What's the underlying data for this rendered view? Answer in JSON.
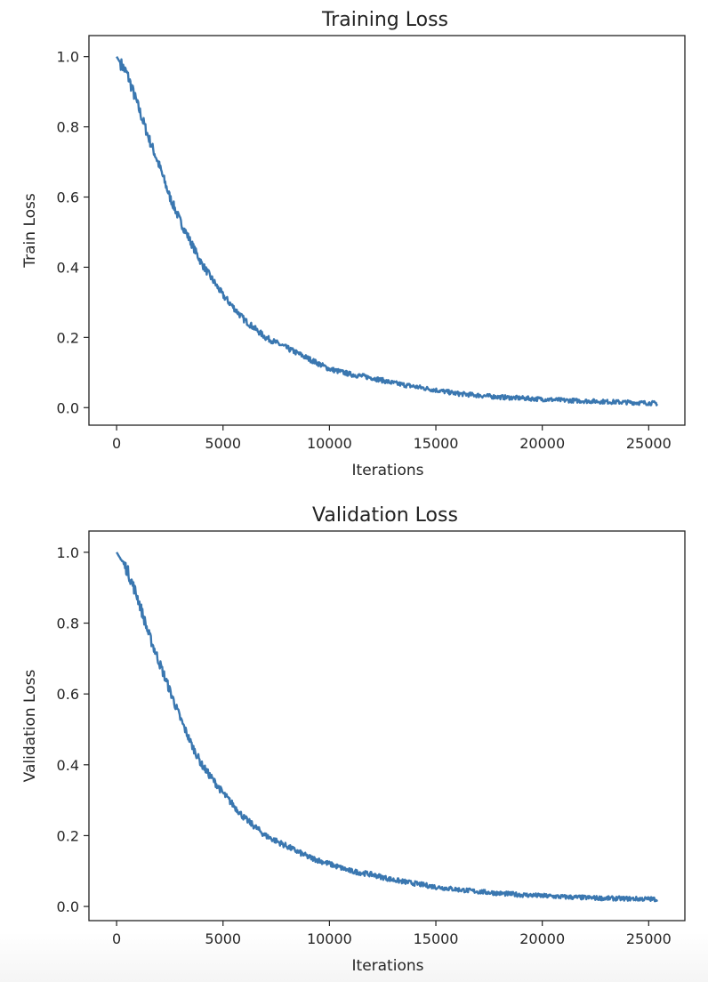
{
  "colors": {
    "line": "#3a77b0",
    "axes": "#222222",
    "background": "#ffffff"
  },
  "chart_data": [
    {
      "type": "line",
      "title": "Training Loss",
      "xlabel": "Iterations",
      "ylabel": "Train Loss",
      "xlim": [
        -1300,
        26700
      ],
      "ylim": [
        -0.05,
        1.06
      ],
      "xticks": [
        0,
        5000,
        10000,
        15000,
        20000,
        25000
      ],
      "xtick_labels": [
        "0",
        "5000",
        "10000",
        "15000",
        "20000",
        "25000"
      ],
      "yticks": [
        0.0,
        0.2,
        0.4,
        0.6,
        0.8,
        1.0
      ],
      "ytick_labels": [
        "0.0",
        "0.2",
        "0.4",
        "0.6",
        "0.8",
        "1.0"
      ],
      "grid": false,
      "series": [
        {
          "color": "#3a77b0",
          "x": [
            0,
            500,
            1000,
            1500,
            2000,
            2500,
            3000,
            3500,
            4000,
            5000,
            6000,
            7000,
            8000,
            9000,
            10000,
            11000,
            12000,
            13000,
            14000,
            15000,
            16000,
            17000,
            18000,
            19000,
            20000,
            21000,
            22000,
            23000,
            24000,
            25000,
            25400
          ],
          "y": [
            1.0,
            0.95,
            0.86,
            0.77,
            0.69,
            0.6,
            0.53,
            0.47,
            0.41,
            0.32,
            0.25,
            0.2,
            0.17,
            0.14,
            0.11,
            0.095,
            0.085,
            0.07,
            0.06,
            0.05,
            0.04,
            0.035,
            0.03,
            0.027,
            0.024,
            0.021,
            0.019,
            0.017,
            0.015,
            0.013,
            0.012
          ],
          "noise": 0.012
        }
      ]
    },
    {
      "type": "line",
      "title": "Validation Loss",
      "xlabel": "Iterations",
      "ylabel": "Validation Loss",
      "xlim": [
        -1300,
        26700
      ],
      "ylim": [
        -0.04,
        1.06
      ],
      "xticks": [
        0,
        5000,
        10000,
        15000,
        20000,
        25000
      ],
      "xtick_labels": [
        "0",
        "5000",
        "10000",
        "15000",
        "20000",
        "25000"
      ],
      "yticks": [
        0.0,
        0.2,
        0.4,
        0.6,
        0.8,
        1.0
      ],
      "ytick_labels": [
        "0.0",
        "0.2",
        "0.4",
        "0.6",
        "0.8",
        "1.0"
      ],
      "grid": false,
      "series": [
        {
          "color": "#3a77b0",
          "x": [
            0,
            500,
            1000,
            1500,
            2000,
            2500,
            3000,
            3500,
            4000,
            5000,
            6000,
            7000,
            8000,
            9000,
            10000,
            11000,
            12000,
            13000,
            14000,
            15000,
            16000,
            17000,
            18000,
            19000,
            20000,
            21000,
            22000,
            23000,
            24000,
            25000,
            25400
          ],
          "y": [
            1.0,
            0.95,
            0.87,
            0.77,
            0.69,
            0.61,
            0.53,
            0.46,
            0.4,
            0.32,
            0.25,
            0.2,
            0.17,
            0.14,
            0.12,
            0.1,
            0.09,
            0.075,
            0.065,
            0.055,
            0.048,
            0.042,
            0.037,
            0.033,
            0.03,
            0.027,
            0.025,
            0.023,
            0.022,
            0.021,
            0.02
          ],
          "noise": 0.012
        }
      ]
    }
  ]
}
